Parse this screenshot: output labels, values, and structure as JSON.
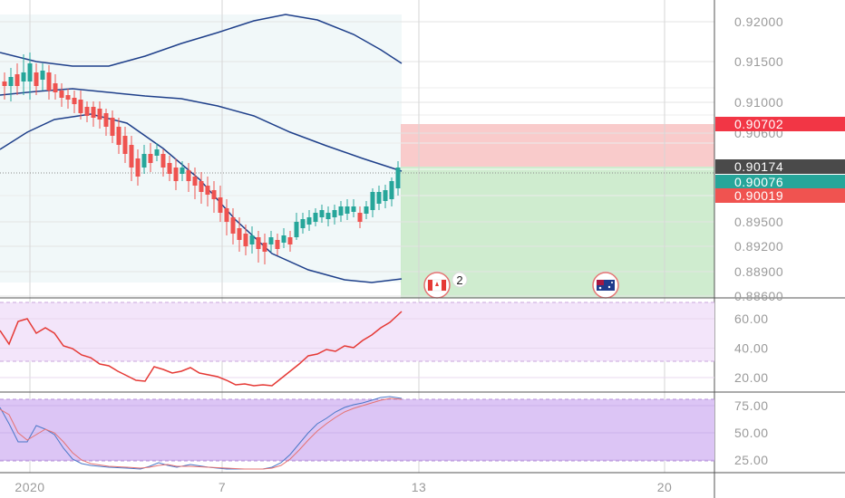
{
  "chart_data": [
    {
      "type": "candlestick",
      "panel": "price",
      "y_ticks": [
        "0.92000",
        "0.91500",
        "0.91000",
        "0.90600",
        "0.89500",
        "0.89200",
        "0.88900",
        "0.88600"
      ],
      "ylim": [
        0.8852,
        0.9227
      ],
      "x_ticks": [
        "2020",
        "7",
        "13",
        "20"
      ],
      "price_tags": [
        {
          "label": "0.90702",
          "value": 0.90702,
          "color": "#f23645"
        },
        {
          "label": "0.90174",
          "value": 0.90174,
          "color": "#4a4a4a"
        },
        {
          "label": "0.90076",
          "value": 0.90076,
          "color": "#26a69a"
        },
        {
          "label": "0.90019",
          "value": 0.90019,
          "color": "#f05350"
        }
      ],
      "position_tool": {
        "entry": 0.90076,
        "stop": 0.90702,
        "target": 0.8862
      },
      "event_icons": [
        {
          "name": "canada-flag-icon",
          "count_label": "2"
        },
        {
          "name": "australia-flag-icon",
          "count_label": ""
        }
      ],
      "colors": {
        "up": "#26a69a",
        "down": "#ef5350",
        "bands": "#1e3f8a"
      }
    },
    {
      "type": "line",
      "panel": "rsi",
      "y_ticks": [
        "60.00",
        "40.00",
        "20.00"
      ],
      "band": [
        30,
        70
      ],
      "color": "#e53935"
    },
    {
      "type": "line",
      "panel": "stochastic",
      "y_ticks": [
        "75.00",
        "50.00",
        "25.00"
      ],
      "band": [
        20,
        80
      ],
      "colors": [
        "#4a78c8",
        "#e57373"
      ]
    }
  ]
}
